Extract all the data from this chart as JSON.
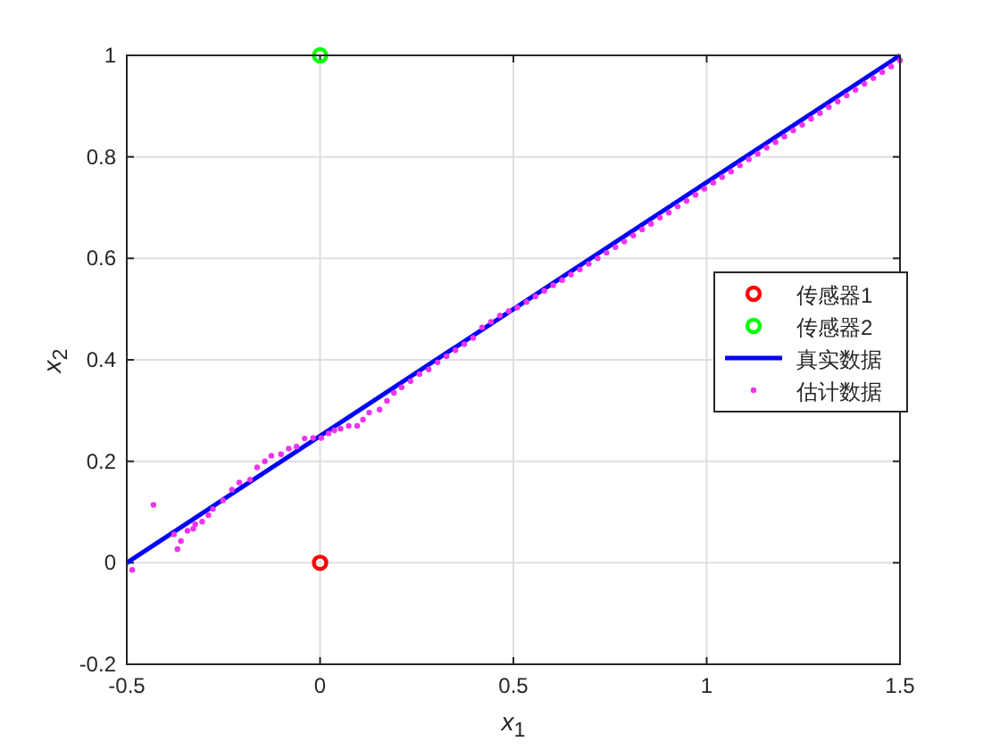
{
  "chart_data": {
    "type": "scatter",
    "xlabel": "x$_{1}$",
    "ylabel": "x$_{2}$",
    "xlim": [
      -0.5,
      1.5
    ],
    "ylim": [
      -0.2,
      1
    ],
    "xticks": [
      -0.5,
      0,
      0.5,
      1,
      1.5
    ],
    "yticks": [
      -0.2,
      0,
      0.2,
      0.4,
      0.6,
      0.8,
      1
    ],
    "grid": true,
    "legend": "right",
    "series": [
      {
        "name": "传感器1",
        "marker": "circle",
        "color": "#ff0000",
        "x": [
          0
        ],
        "values": [
          0
        ]
      },
      {
        "name": "传感器2",
        "marker": "circle",
        "color": "#00ff00",
        "x": [
          0
        ],
        "values": [
          1
        ]
      },
      {
        "name": "真实数据",
        "type": "line",
        "color": "#0000ff",
        "x": [
          -0.5,
          1.5
        ],
        "values": [
          0,
          1
        ]
      },
      {
        "name": "估计数据",
        "color": "#ee33ee",
        "x": [
          -0.486,
          -0.431,
          -0.378,
          -0.369,
          -0.36,
          -0.343,
          -0.328,
          -0.323,
          -0.305,
          -0.289,
          -0.277,
          -0.251,
          -0.228,
          -0.209,
          -0.181,
          -0.163,
          -0.143,
          -0.126,
          -0.101,
          -0.081,
          -0.061,
          -0.04,
          -0.018,
          0.003,
          0.022,
          0.037,
          0.053,
          0.074,
          0.096,
          0.111,
          0.127,
          0.154,
          0.173,
          0.191,
          0.211,
          0.234,
          0.257,
          0.281,
          0.304,
          0.327,
          0.35,
          0.373,
          0.396,
          0.419,
          0.442,
          0.465,
          0.488,
          0.51,
          0.534,
          0.557,
          0.58,
          0.603,
          0.626,
          0.649,
          0.672,
          0.695,
          0.718,
          0.741,
          0.764,
          0.787,
          0.81,
          0.833,
          0.856,
          0.879,
          0.902,
          0.925,
          0.948,
          0.971,
          0.994,
          1.017,
          1.04,
          1.063,
          1.086,
          1.109,
          1.132,
          1.155,
          1.178,
          1.201,
          1.224,
          1.247,
          1.27,
          1.293,
          1.316,
          1.339,
          1.362,
          1.385,
          1.408,
          1.431,
          1.454,
          1.477,
          1.5
        ],
        "values": [
          -0.014,
          0.114,
          0.056,
          0.027,
          0.043,
          0.063,
          0.067,
          0.076,
          0.081,
          0.094,
          0.106,
          0.123,
          0.144,
          0.158,
          0.164,
          0.188,
          0.2,
          0.211,
          0.214,
          0.225,
          0.229,
          0.245,
          0.246,
          0.246,
          0.255,
          0.261,
          0.264,
          0.27,
          0.27,
          0.282,
          0.296,
          0.302,
          0.319,
          0.335,
          0.346,
          0.358,
          0.372,
          0.381,
          0.395,
          0.407,
          0.419,
          0.431,
          0.443,
          0.464,
          0.475,
          0.487,
          0.496,
          0.503,
          0.514,
          0.525,
          0.536,
          0.547,
          0.557,
          0.568,
          0.578,
          0.589,
          0.6,
          0.611,
          0.622,
          0.633,
          0.645,
          0.657,
          0.668,
          0.68,
          0.69,
          0.702,
          0.713,
          0.725,
          0.737,
          0.749,
          0.76,
          0.771,
          0.783,
          0.795,
          0.806,
          0.818,
          0.829,
          0.84,
          0.852,
          0.863,
          0.875,
          0.886,
          0.898,
          0.909,
          0.921,
          0.932,
          0.944,
          0.955,
          0.967,
          0.978,
          0.99
        ]
      }
    ]
  }
}
